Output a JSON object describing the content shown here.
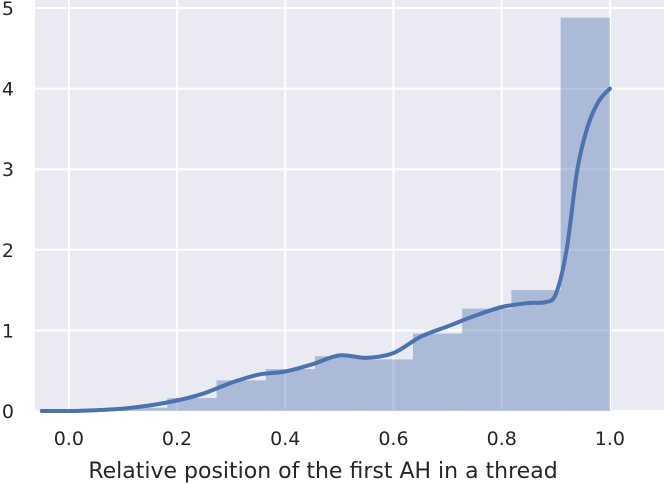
{
  "chart_data": {
    "type": "bar",
    "title": "",
    "xlabel": "Relative position of the first AH in a thread",
    "ylabel": "",
    "xlim": [
      -0.0625,
      1.1
    ],
    "ylim": [
      0,
      5
    ],
    "grid": true,
    "xticks": [
      0.0,
      0.2,
      0.4,
      0.6,
      0.8,
      1.0
    ],
    "xtick_labels": [
      "0.0",
      "0.2",
      "0.4",
      "0.6",
      "0.8",
      "1.0"
    ],
    "yticks": [
      0,
      1,
      2,
      3,
      4,
      5
    ],
    "ytick_labels": [
      "0",
      "1",
      "2",
      "3",
      "4",
      "5"
    ],
    "histogram": {
      "bin_edges": [
        0.0,
        0.091,
        0.182,
        0.273,
        0.364,
        0.455,
        0.545,
        0.636,
        0.727,
        0.818,
        0.909,
        1.0
      ],
      "values": [
        0.0,
        0.04,
        0.16,
        0.38,
        0.52,
        0.68,
        0.64,
        0.96,
        1.27,
        1.5,
        4.88
      ]
    },
    "kde": {
      "x": [
        -0.05,
        0.0,
        0.05,
        0.1,
        0.15,
        0.2,
        0.25,
        0.3,
        0.35,
        0.4,
        0.45,
        0.5,
        0.55,
        0.6,
        0.65,
        0.7,
        0.75,
        0.8,
        0.85,
        0.88,
        0.9,
        0.92,
        0.94,
        0.96,
        0.98,
        1.0
      ],
      "y": [
        0.0,
        0.0,
        0.01,
        0.03,
        0.07,
        0.13,
        0.22,
        0.35,
        0.45,
        0.49,
        0.58,
        0.69,
        0.66,
        0.72,
        0.92,
        1.05,
        1.18,
        1.29,
        1.34,
        1.35,
        1.45,
        2.0,
        3.0,
        3.55,
        3.85,
        4.0
      ]
    },
    "colors": {
      "background": "#eaeaf2",
      "grid": "#ffffff",
      "bar": "#4c72b0",
      "line": "#4c72b0"
    }
  }
}
